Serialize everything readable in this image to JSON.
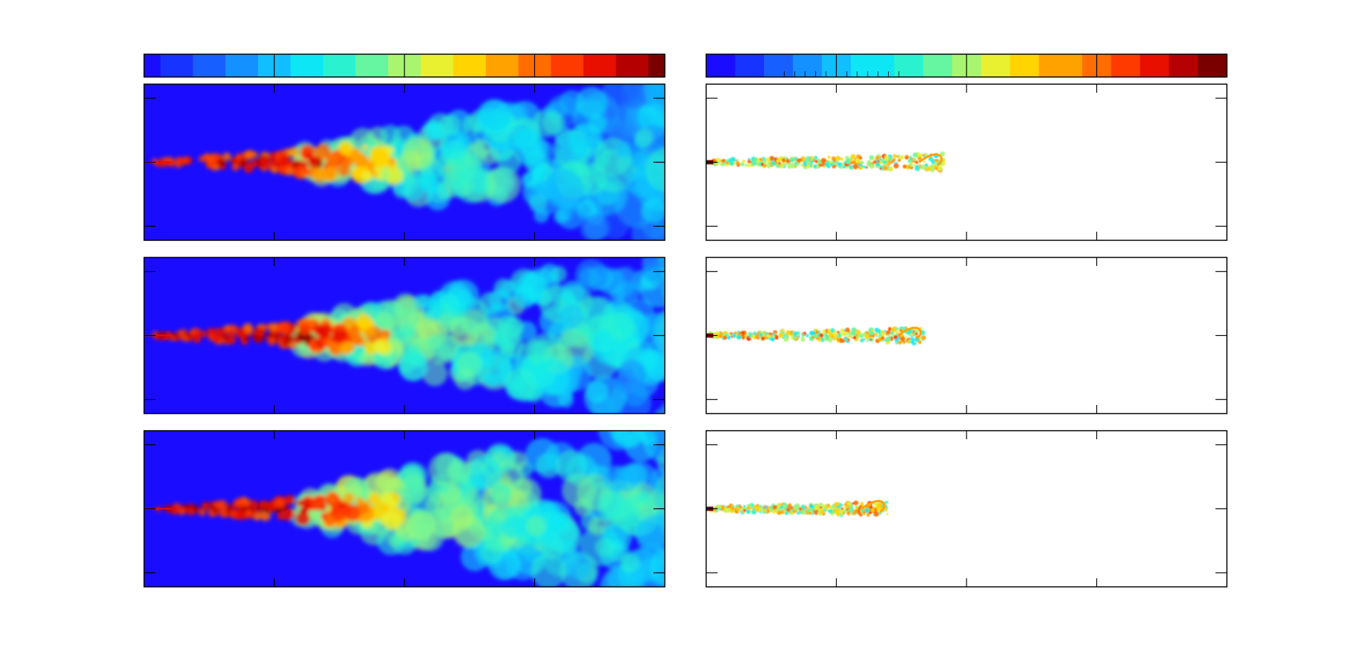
{
  "figure": {
    "title": ""
  },
  "colormap": [
    "#1a0dff",
    "#1733ff",
    "#1760ff",
    "#1590ff",
    "#11bfff",
    "#0de7f5",
    "#2af2d0",
    "#66f5a0",
    "#a8f570",
    "#e8f030",
    "#ffd400",
    "#ffa200",
    "#ff6d00",
    "#ff3a00",
    "#e80e00",
    "#b40000",
    "#7a0000"
  ],
  "chart_data": [
    {
      "type": "colorbar",
      "name": "left-colorbar",
      "orientation": "horizontal",
      "levels": 32,
      "major_ticks": 4,
      "tick_labels": []
    },
    {
      "type": "colorbar",
      "name": "right-colorbar",
      "orientation": "horizontal",
      "levels": 36,
      "major_ticks": 4,
      "tick_labels": []
    },
    {
      "type": "heatmap",
      "name": "left-column-fields",
      "background": "#1a0dff",
      "panels": [
        {
          "row": 1,
          "core_length": 0.47,
          "plume_spread": 0.4,
          "core_value": 0.92,
          "plume_value": 0.42
        },
        {
          "row": 2,
          "core_length": 0.45,
          "plume_spread": 0.43,
          "core_value": 0.95,
          "plume_value": 0.45
        },
        {
          "row": 3,
          "core_length": 0.48,
          "plume_spread": 0.46,
          "core_value": 0.96,
          "plume_value": 0.48
        }
      ],
      "x_ticks": 5,
      "y_ticks": 3,
      "tick_labels": []
    },
    {
      "type": "heatmap",
      "name": "right-column-fields",
      "background": "#ffffff",
      "panels": [
        {
          "row": 1,
          "streak_length": 0.45,
          "streak_value": 0.55,
          "tip_value": 0.7
        },
        {
          "row": 2,
          "streak_length": 0.41,
          "streak_value": 0.55,
          "tip_value": 0.7
        },
        {
          "row": 3,
          "streak_length": 0.34,
          "streak_value": 0.55,
          "tip_value": 0.68
        }
      ],
      "x_ticks": 5,
      "y_ticks": 3,
      "tick_labels": []
    }
  ]
}
